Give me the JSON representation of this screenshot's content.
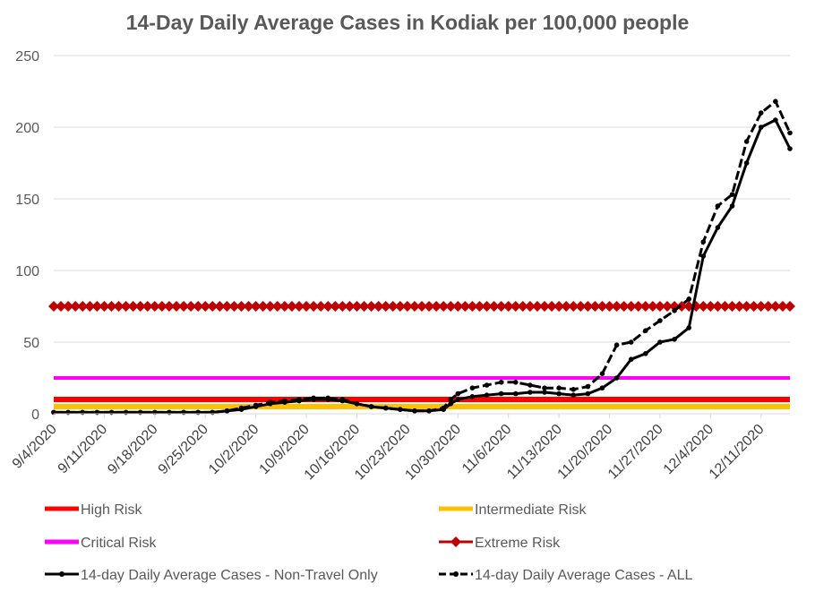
{
  "chart_data": {
    "type": "line",
    "title": "14-Day Daily Average Cases in Kodiak per 100,000 people",
    "xlabel": "",
    "ylabel": "",
    "ylim": [
      0,
      250
    ],
    "y_ticks": [
      "0",
      "50",
      "100",
      "150",
      "200",
      "250"
    ],
    "y_tick_values": [
      0,
      50,
      100,
      150,
      200,
      250
    ],
    "x_tick_labels": [
      "9/4/2020",
      "9/11/2020",
      "9/18/2020",
      "9/25/2020",
      "10/2/2020",
      "10/9/2020",
      "10/16/2020",
      "10/23/2020",
      "10/30/2020",
      "11/6/2020",
      "11/13/2020",
      "11/20/2020",
      "11/27/2020",
      "12/4/2020",
      "12/11/2020"
    ],
    "x_tick_days": [
      0,
      7,
      14,
      21,
      28,
      35,
      42,
      49,
      56,
      63,
      70,
      77,
      84,
      91,
      98
    ],
    "x_range_days": [
      0,
      102
    ],
    "grid": "horizontal",
    "legend_position": "bottom",
    "risk_levels": [
      {
        "name": "High Risk",
        "value": 10,
        "color": "#ff0000"
      },
      {
        "name": "Intermediate Risk",
        "value": 5,
        "color": "#ffc000"
      },
      {
        "name": "Critical Risk",
        "value": 25,
        "color": "#ff00ff"
      },
      {
        "name": "Extreme Risk",
        "value": 75,
        "color": "#c00000"
      }
    ],
    "series": [
      {
        "name": "14-day Daily Average Cases - Non-Travel Only",
        "style": "solid",
        "color": "#000000",
        "days": [
          0,
          2,
          4,
          6,
          8,
          10,
          12,
          14,
          16,
          18,
          20,
          22,
          24,
          26,
          28,
          30,
          32,
          34,
          36,
          38,
          40,
          42,
          44,
          46,
          48,
          50,
          52,
          54,
          55,
          56,
          58,
          60,
          62,
          64,
          66,
          68,
          70,
          72,
          74,
          76,
          78,
          80,
          82,
          84,
          86,
          88,
          90,
          92,
          94,
          96,
          98,
          100,
          102
        ],
        "values": [
          1,
          1,
          1,
          1,
          1,
          1,
          1,
          1,
          1,
          1,
          1,
          1,
          2,
          3,
          5,
          7,
          8,
          9,
          10,
          10,
          9,
          7,
          5,
          4,
          3,
          2,
          2,
          3,
          7,
          10,
          12,
          13,
          14,
          14,
          15,
          15,
          14,
          13,
          14,
          18,
          25,
          38,
          42,
          50,
          52,
          60,
          110,
          130,
          145,
          175,
          200,
          205,
          185
        ]
      },
      {
        "name": "14-day Daily Average Cases - ALL",
        "style": "dashed",
        "color": "#000000",
        "days": [
          0,
          2,
          4,
          6,
          8,
          10,
          12,
          14,
          16,
          18,
          20,
          22,
          24,
          26,
          28,
          30,
          32,
          34,
          36,
          38,
          40,
          42,
          44,
          46,
          48,
          50,
          52,
          54,
          55,
          56,
          58,
          60,
          62,
          64,
          66,
          68,
          70,
          72,
          74,
          76,
          78,
          80,
          82,
          84,
          86,
          88,
          90,
          92,
          94,
          96,
          98,
          100,
          102
        ],
        "values": [
          1,
          1,
          1,
          1,
          1,
          1,
          1,
          1,
          1,
          1,
          1,
          1,
          2,
          4,
          6,
          8,
          9,
          10,
          11,
          11,
          10,
          7,
          5,
          4,
          3,
          2,
          2,
          4,
          10,
          14,
          18,
          20,
          22,
          22,
          20,
          18,
          18,
          17,
          19,
          28,
          48,
          50,
          58,
          65,
          72,
          80,
          120,
          145,
          153,
          190,
          210,
          218,
          196
        ]
      }
    ]
  }
}
